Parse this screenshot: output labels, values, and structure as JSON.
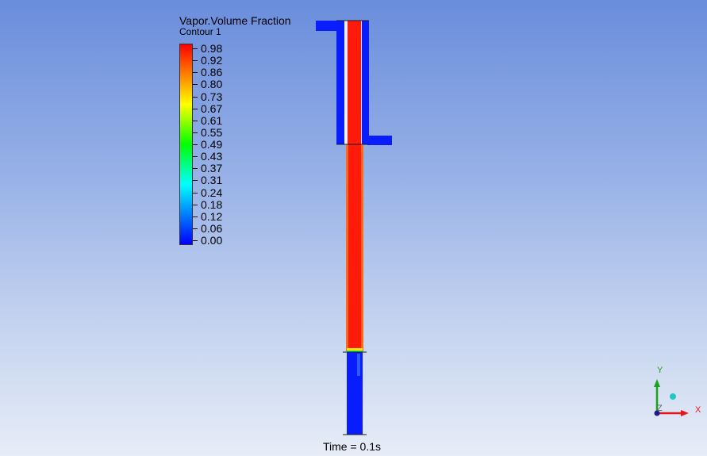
{
  "legend": {
    "title": "Vapor.Volume Fraction",
    "subtitle": "Contour 1",
    "ticks": [
      "0.98",
      "0.92",
      "0.86",
      "0.80",
      "0.73",
      "0.67",
      "0.61",
      "0.55",
      "0.49",
      "0.43",
      "0.37",
      "0.31",
      "0.24",
      "0.18",
      "0.12",
      "0.06",
      "0.00"
    ],
    "colormap": [
      "#0000ff",
      "#0055ff",
      "#00aaff",
      "#00ffff",
      "#00ff80",
      "#00ff00",
      "#80ff00",
      "#ffff00",
      "#ffaa00",
      "#ff5500",
      "#ff0000"
    ]
  },
  "time_label": "Time = 0.1s",
  "colors": {
    "vapor": "#ff1a0a",
    "liquid": "#0a1dff",
    "outline": "#1a1a1a"
  },
  "triad": {
    "x_label": "X",
    "y_label": "Y",
    "z_label": "Z",
    "x_color": "#e8151a",
    "y_color": "#1aa31a",
    "z_color": "#1a1a8c"
  }
}
